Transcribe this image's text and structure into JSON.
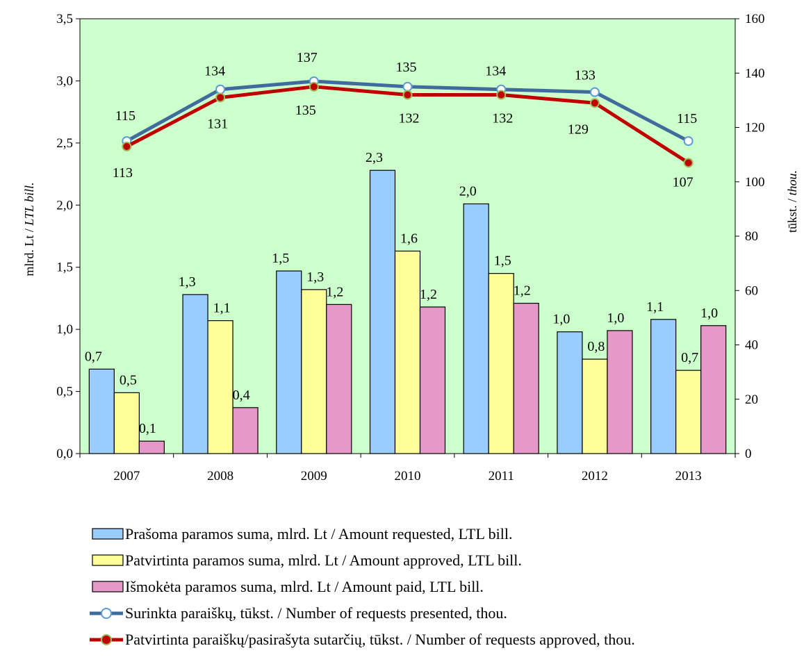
{
  "chart_data": {
    "type": "bar",
    "categories": [
      "2007",
      "2008",
      "2009",
      "2010",
      "2011",
      "2012",
      "2013"
    ],
    "y_left": {
      "label_plain": "mlrd. Lt / ",
      "label_italic": "LTL bill.",
      "range": [
        0,
        3.5
      ],
      "ticks": [
        0.0,
        0.5,
        1.0,
        1.5,
        2.0,
        2.5,
        3.0,
        3.5
      ],
      "tick_labels": [
        "0,0",
        "0,5",
        "1,0",
        "1,5",
        "2,0",
        "2,5",
        "3,0",
        "3,5"
      ]
    },
    "y_right": {
      "label_plain": "tūkst.  / ",
      "label_italic": "thou.",
      "range": [
        0,
        160
      ],
      "ticks": [
        0,
        20,
        40,
        60,
        80,
        100,
        120,
        140,
        160
      ],
      "tick_labels": [
        "0",
        "20",
        "40",
        "60",
        "80",
        "100",
        "120",
        "140",
        "160"
      ]
    },
    "bar_series": [
      {
        "name": "Prašoma paramos suma, mlrd. Lt / Amount requested, LTL bill.",
        "values": [
          0.68,
          1.28,
          1.47,
          2.28,
          2.01,
          0.98,
          1.08
        ],
        "labels": [
          "0,7",
          "1,3",
          "1,5",
          "2,3",
          "2,0",
          "1,0",
          "1,1"
        ],
        "color": "#99ccff"
      },
      {
        "name": "Patvirtinta paramos suma, mlrd. Lt / Amount approved, LTL bill.",
        "values": [
          0.49,
          1.07,
          1.32,
          1.63,
          1.45,
          0.76,
          0.67
        ],
        "labels": [
          "0,5",
          "1,1",
          "1,3",
          "1,6",
          "1,5",
          "0,8",
          "0,7"
        ],
        "color": "#ffff99"
      },
      {
        "name": "Išmokėta paramos suma, mlrd. Lt / Amount paid, LTL bill.",
        "values": [
          0.1,
          0.37,
          1.2,
          1.18,
          1.21,
          0.99,
          1.03
        ],
        "labels": [
          "0,1",
          "0,4",
          "1,2",
          "1,2",
          "1,2",
          "1,0",
          "1,0"
        ],
        "color": "#e699c8"
      }
    ],
    "line_series": [
      {
        "name": "Surinkta paraiškų, tūkst. / Number of  requests presented, thou.",
        "values": [
          115,
          134,
          137,
          135,
          134,
          133,
          115
        ],
        "labels": [
          "115",
          "134",
          "137",
          "135",
          "134",
          "133",
          "115"
        ],
        "color": "#3f6c9c",
        "marker_fill": "#ffffff",
        "marker_stroke": "#5b9bd5"
      },
      {
        "name": "Patvirtinta paraiškų/pasirašyta sutarčių, tūkst. / Number of requests approved, thou.",
        "values": [
          113,
          131,
          135,
          132,
          132,
          129,
          107
        ],
        "labels": [
          "113",
          "131",
          "135",
          "132",
          "132",
          "129",
          "107"
        ],
        "color": "#c00000",
        "marker_fill": "#c00000",
        "marker_stroke": "#9bbb59"
      }
    ],
    "plot_background": "#ccffcc",
    "grid": false,
    "legend_position": "bottom"
  }
}
